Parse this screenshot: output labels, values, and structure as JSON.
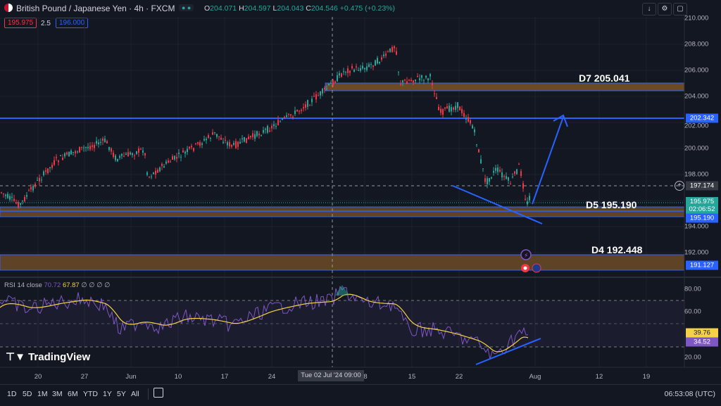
{
  "header": {
    "symbol_title": "British Pound / Japanese Yen · 4h · FXCM",
    "status_dots": "● ●",
    "ohlc": {
      "o_label": "O",
      "o": "204.071",
      "h_label": "H",
      "h": "204.597",
      "l_label": "L",
      "l": "204.043",
      "c_label": "C",
      "c": "204.546",
      "change": "+0.475 (+0.23%)"
    },
    "buttons": {
      "down_arrow": "↓",
      "settings": "⚙",
      "screenshot": "▢"
    }
  },
  "trade": {
    "bid": "195.975",
    "spread": "2.5",
    "ask": "196.000"
  },
  "price_axis": {
    "ticks": [
      "210.000",
      "208.000",
      "206.000",
      "204.000",
      "202.000",
      "200.000",
      "198.000",
      "196.000",
      "194.000",
      "192.000"
    ]
  },
  "price_labels": {
    "level_202": "202.342",
    "crosshair": "197.174",
    "last": "195.975",
    "countdown": "02:06:52",
    "level_195": "195.190",
    "level_191": "191.127"
  },
  "annotations": {
    "d7": "D7 205.041",
    "d5": "D5 195.190",
    "d4": "D4 192.448"
  },
  "rsi": {
    "legend_name": "RSI 14 close",
    "value_rsi": "70.72",
    "value_ma": "67.87",
    "legend_rest": "∅ ∅ ∅ ∅",
    "axis_ticks": [
      "80.00",
      "60.00",
      "40.00",
      "20.00"
    ],
    "label_ma": "39.76",
    "label_rsi": "34.52"
  },
  "time_axis": {
    "ticks": [
      "20",
      "27",
      "Jun",
      "10",
      "17",
      "24",
      "8",
      "15",
      "22",
      "Aug",
      "12",
      "19"
    ],
    "crosshair": "Tue 02 Jul '24   09:00"
  },
  "footer": {
    "timeframes": [
      "1D",
      "5D",
      "1M",
      "3M",
      "6M",
      "YTD",
      "1Y",
      "5Y",
      "All"
    ],
    "clock": "06:53:08 (UTC)"
  },
  "branding": {
    "logo_text": "TradingView"
  },
  "colors": {
    "up": "#26a69a",
    "down": "#f23645",
    "accent": "#2962ff",
    "rsi": "#7e57c2",
    "rsi_ma": "#f5d245",
    "zone": "#6b4a24"
  }
}
